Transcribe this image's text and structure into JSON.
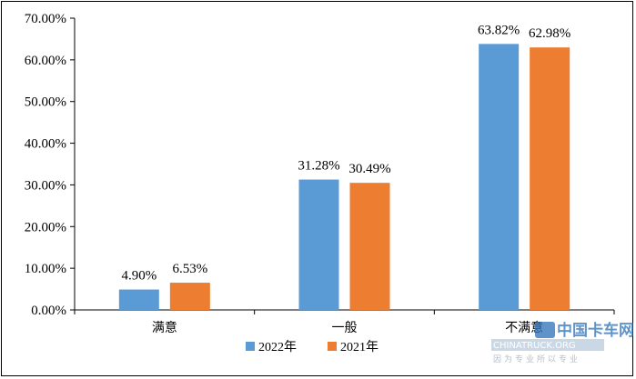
{
  "chart_data": {
    "type": "bar",
    "categories": [
      "满意",
      "一般",
      "不满意"
    ],
    "series": [
      {
        "name": "2022年",
        "values": [
          4.9,
          31.28,
          63.82
        ],
        "labels": [
          "4.90%",
          "31.28%",
          "63.82%"
        ],
        "color": "#5b9bd5"
      },
      {
        "name": "2021年",
        "values": [
          6.53,
          30.49,
          62.98
        ],
        "labels": [
          "6.53%",
          "30.49%",
          "62.98%"
        ],
        "color": "#ed7d31"
      }
    ],
    "ylim": [
      0,
      70
    ],
    "yticks": [
      0,
      10,
      20,
      30,
      40,
      50,
      60,
      70
    ],
    "ytick_labels": [
      "0.00%",
      "10.00%",
      "20.00%",
      "30.00%",
      "40.00%",
      "50.00%",
      "60.00%",
      "70.00%"
    ],
    "legend_position": "bottom",
    "grid": false
  },
  "watermark": {
    "title": "中国卡车网",
    "subtitle": "CHINATRUCK.ORG",
    "tagline": "因为专业所以专业"
  }
}
